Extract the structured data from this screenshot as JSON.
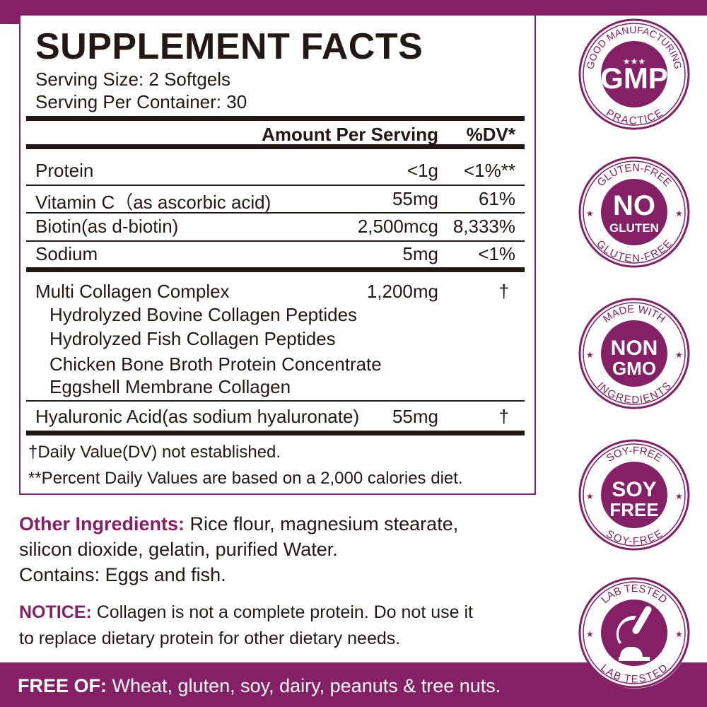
{
  "colors": {
    "brand": "#851f66",
    "text": "#231815"
  },
  "panel": {
    "title": "SUPPLEMENT FACTS",
    "serving_size": "Serving Size: 2 Softgels",
    "servings_per_container": "Serving Per Container: 30",
    "header_amount": "Amount Per Serving",
    "header_dv": "%DV*",
    "nutrients": [
      {
        "name": "Protein",
        "amount": "<1g",
        "dv": "<1%**"
      },
      {
        "name": "Vitamin C（as ascorbic acid)",
        "amount": "55mg",
        "dv": "61%"
      },
      {
        "name": "Biotin(as d-biotin)",
        "amount": "2,500mcg",
        "dv": "8,333%"
      },
      {
        "name": "Sodium",
        "amount": "5mg",
        "dv": "<1%"
      }
    ],
    "complex": {
      "name": "Multi Collagen Complex",
      "amount": "1,200mg",
      "dv": "†",
      "components": [
        "Hydrolyzed Bovine Collagen Peptides",
        "Hydrolyzed Fish Collagen Peptides",
        "Chicken Bone Broth Protein Concentrate",
        "Eggshell Membrane Collagen"
      ]
    },
    "hyaluronic": {
      "name": "Hyaluronic Acid(as sodium hyaluronate)",
      "amount": "55mg",
      "dv": "†"
    },
    "footnotes": [
      "†Daily Value(DV) not established.",
      "**Percent Daily Values are based on a 2,000 calories diet."
    ]
  },
  "other_ingredients": {
    "label": "Other Ingredients:",
    "line1": " Rice flour, magnesium stearate,",
    "line2": "silicon dioxide, gelatin, purified Water.",
    "line3": "Contains: Eggs and fish."
  },
  "notice": {
    "label": "NOTICE:",
    "line1": " Collagen is not a complete protein. Do not use it",
    "line2": "to replace dietary protein for other dietary needs."
  },
  "free_of": {
    "label": "FREE OF:",
    "text": " Wheat, gluten, soy, dairy, peanuts & tree nuts."
  },
  "badges": [
    {
      "icon": "gmp-badge-icon",
      "top": "GOOD MANUFACTURING",
      "bottom": "PRACTICE",
      "center1": "GMP",
      "center2": "★★★"
    },
    {
      "icon": "gluten-free-badge-icon",
      "top": "GLUTEN-FREE",
      "bottom": "GLUTEN-FREE",
      "center1": "NO",
      "center2": "GLUTEN"
    },
    {
      "icon": "non-gmo-badge-icon",
      "top": "MADE WITH",
      "bottom": "INGREDIENTS",
      "center1": "NON",
      "center2": "GMO"
    },
    {
      "icon": "soy-free-badge-icon",
      "top": "SOY-FREE",
      "bottom": "SOY-FREE",
      "center1": "SOY",
      "center2": "FREE"
    },
    {
      "icon": "lab-tested-badge-icon",
      "top": "LAB TESTED",
      "bottom": "LAB TESTED",
      "center1": "",
      "center2": ""
    }
  ]
}
